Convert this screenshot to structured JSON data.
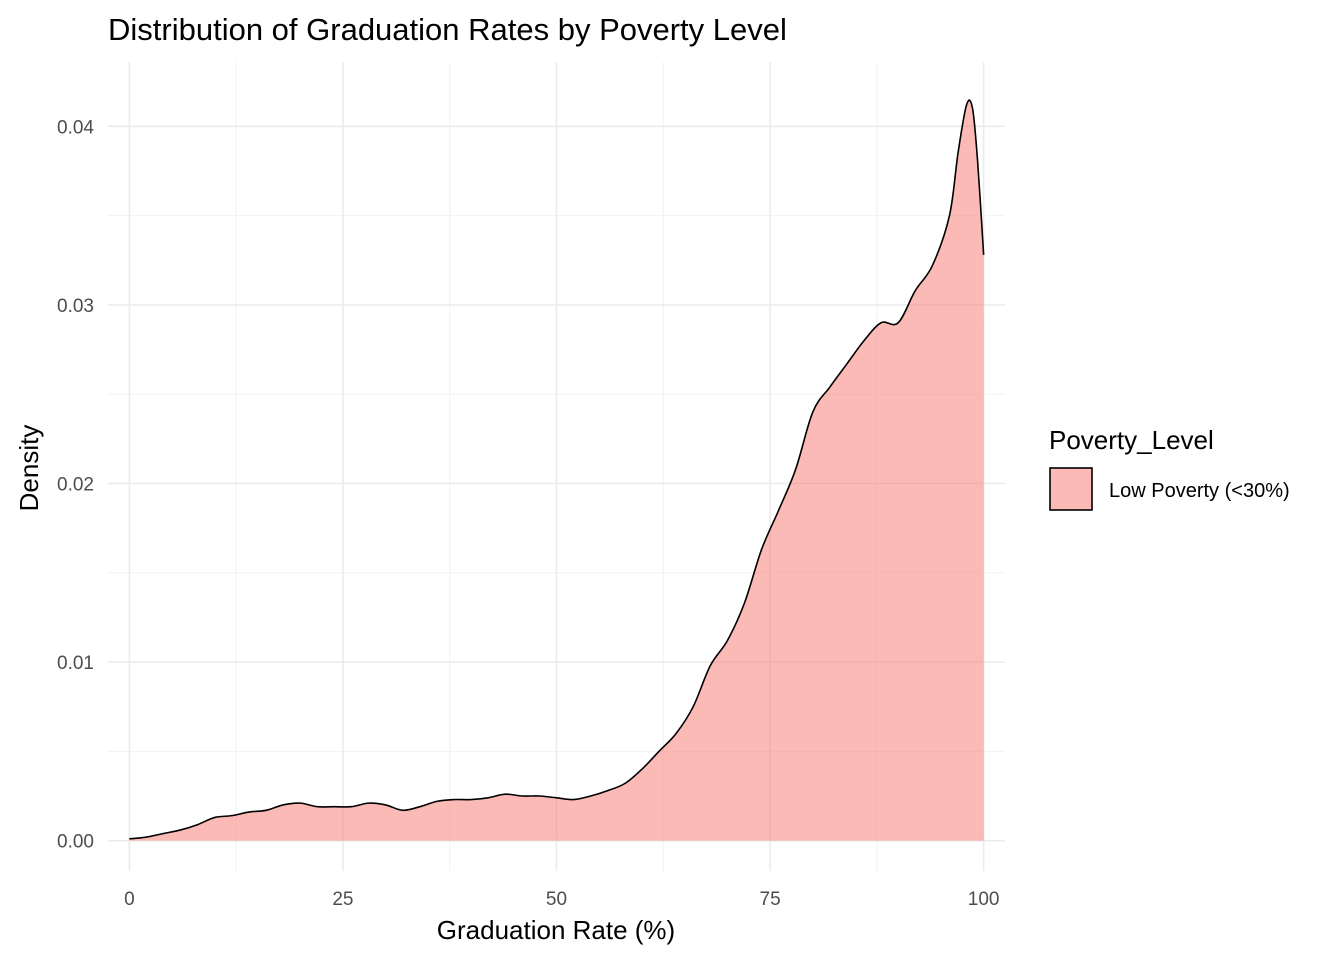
{
  "chart_data": {
    "type": "area",
    "title": "Distribution of Graduation Rates by Poverty Level",
    "xlabel": "Graduation Rate (%)",
    "ylabel": "Density",
    "xlim": [
      -2.5,
      102.5
    ],
    "ylim": [
      -0.0017,
      0.0436
    ],
    "x_ticks": [
      0,
      25,
      50,
      75,
      100
    ],
    "x_tick_labels": [
      "0",
      "25",
      "50",
      "75",
      "100"
    ],
    "y_ticks": [
      0.0,
      0.01,
      0.02,
      0.03,
      0.04
    ],
    "y_tick_labels": [
      "0.00",
      "0.01",
      "0.02",
      "0.03",
      "0.04"
    ],
    "grid": true,
    "legend": {
      "title": "Poverty_Level",
      "placement": "right",
      "entries": [
        {
          "label": "Low Poverty (<30%)",
          "color": "#F8766D"
        }
      ]
    },
    "series": [
      {
        "name": "Low Poverty (<30%)",
        "color": "#F8766D",
        "fill_opacity": 0.5,
        "x": [
          0,
          2,
          4,
          6,
          8,
          10,
          12,
          14,
          16,
          18,
          20,
          22,
          24,
          26,
          28,
          30,
          32,
          34,
          36,
          38,
          40,
          42,
          44,
          46,
          48,
          50,
          52,
          54,
          56,
          58,
          60,
          62,
          64,
          66,
          68,
          70,
          72,
          74,
          76,
          78,
          80,
          82,
          84,
          86,
          88,
          90,
          92,
          94,
          96,
          97,
          98,
          98.7,
          99.3,
          100
        ],
        "y": [
          0.0001,
          0.0002,
          0.0004,
          0.0006,
          0.0009,
          0.0013,
          0.0014,
          0.0016,
          0.0017,
          0.002,
          0.0021,
          0.0019,
          0.0019,
          0.0019,
          0.0021,
          0.002,
          0.0017,
          0.0019,
          0.0022,
          0.0023,
          0.0023,
          0.0024,
          0.0026,
          0.0025,
          0.0025,
          0.0024,
          0.0023,
          0.0025,
          0.0028,
          0.0032,
          0.004,
          0.005,
          0.006,
          0.0075,
          0.0098,
          0.0112,
          0.0133,
          0.0163,
          0.0185,
          0.0208,
          0.024,
          0.0254,
          0.0267,
          0.028,
          0.029,
          0.029,
          0.0308,
          0.0322,
          0.035,
          0.0385,
          0.0412,
          0.041,
          0.038,
          0.0328
        ]
      }
    ]
  }
}
